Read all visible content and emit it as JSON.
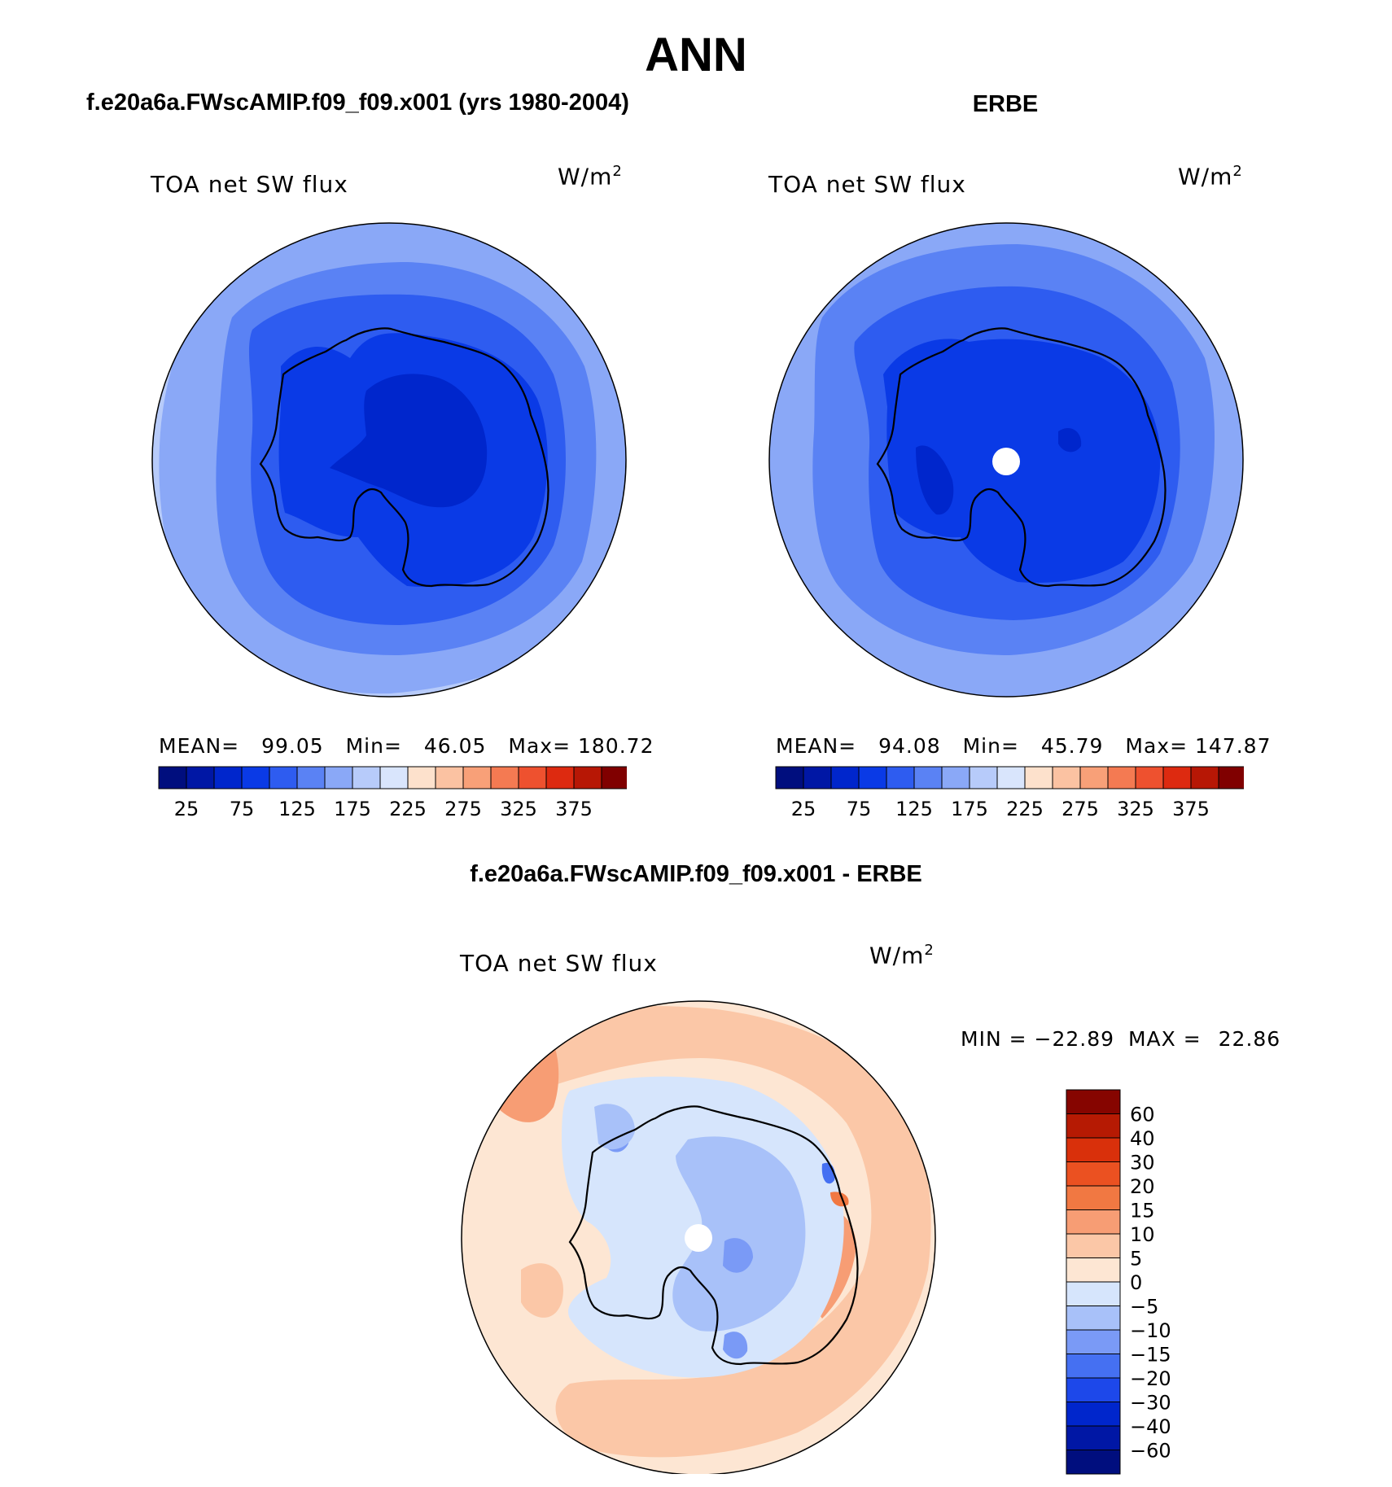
{
  "header": {
    "title": "ANN",
    "left_subtitle": "f.e20a6a.FWscAMIP.f09_f09.x001 (yrs 1980-2004)",
    "right_subtitle": "ERBE",
    "diff_subtitle": "f.e20a6a.FWscAMIP.f09_f09.x001 - ERBE"
  },
  "colors": {
    "abs_levels": [
      "#000e7e",
      "#0017a5",
      "#0026cc",
      "#0a3ae6",
      "#2e5cf0",
      "#5a82f4",
      "#8aa8f7",
      "#b7cbfa",
      "#d9e5fc",
      "#fde1cc",
      "#fbc2a2",
      "#f8a078",
      "#f47a52",
      "#ee512f",
      "#dd2a10",
      "#b71705",
      "#800000"
    ],
    "diff_levels": [
      "#000e7e",
      "#0017a5",
      "#0026cc",
      "#1d48ea",
      "#4570f2",
      "#7a9af6",
      "#a8c1f9",
      "#d6e5fc",
      "#fde6d3",
      "#fbc7a7",
      "#f79d74",
      "#f17842",
      "#eb5121",
      "#d9300b",
      "#b61a03",
      "#860500"
    ]
  },
  "chart_data": [
    {
      "type": "heatmap",
      "projection": "south polar stereographic",
      "title": "f.e20a6a.FWscAMIP.f09_f09.x001 (yrs 1980-2004)",
      "variable": "TOA net SW flux",
      "units_text": "W/m",
      "units_sup": "2",
      "stats": {
        "mean_label": "MEAN=",
        "mean": "99.05",
        "min_label": "Min=",
        "min": "46.05",
        "max_label": "Max=",
        "max": "180.72"
      },
      "colorbar_levels": [
        25,
        50,
        75,
        100,
        125,
        150,
        175,
        200,
        225,
        250,
        275,
        300,
        325,
        350,
        375
      ],
      "colorbar_labels": [
        "25",
        "75",
        "125",
        "175",
        "225",
        "275",
        "325",
        "375"
      ],
      "field_bands": [
        {
          "lower": 175,
          "upper": 200
        },
        {
          "lower": 150,
          "upper": 175
        },
        {
          "lower": 125,
          "upper": 150
        },
        {
          "lower": 100,
          "upper": 125
        },
        {
          "lower": 75,
          "upper": 100
        },
        {
          "lower": 50,
          "upper": 75
        }
      ]
    },
    {
      "type": "heatmap",
      "projection": "south polar stereographic",
      "title": "ERBE",
      "variable": "TOA net SW flux",
      "units_text": "W/m",
      "units_sup": "2",
      "stats": {
        "mean_label": "MEAN=",
        "mean": "94.08",
        "min_label": "Min=",
        "min": "45.79",
        "max_label": "Max=",
        "max": "147.87"
      },
      "colorbar_levels": [
        25,
        50,
        75,
        100,
        125,
        150,
        175,
        200,
        225,
        250,
        275,
        300,
        325,
        350,
        375
      ],
      "colorbar_labels": [
        "25",
        "75",
        "125",
        "175",
        "225",
        "275",
        "325",
        "375"
      ],
      "field_bands": [
        {
          "lower": 125,
          "upper": 150
        },
        {
          "lower": 100,
          "upper": 125
        },
        {
          "lower": 75,
          "upper": 100
        },
        {
          "lower": 50,
          "upper": 75
        }
      ]
    },
    {
      "type": "heatmap",
      "projection": "south polar stereographic",
      "title": "f.e20a6a.FWscAMIP.f09_f09.x001 - ERBE",
      "variable": "TOA net SW flux",
      "units_text": "W/m",
      "units_sup": "2",
      "stats": {
        "min_label": "MIN =",
        "min": "−22.89",
        "max_label": "MAX =",
        "max": "22.86"
      },
      "colorbar_levels": [
        -60,
        -40,
        -30,
        -20,
        -15,
        -10,
        -5,
        0,
        5,
        10,
        15,
        20,
        30,
        40,
        60
      ],
      "colorbar_labels": [
        "60",
        "40",
        "30",
        "20",
        "15",
        "10",
        "5",
        "0",
        "−5",
        "−10",
        "−15",
        "−20",
        "−30",
        "−40",
        "−60"
      ],
      "field_range": [
        -22.89,
        22.86
      ]
    }
  ]
}
